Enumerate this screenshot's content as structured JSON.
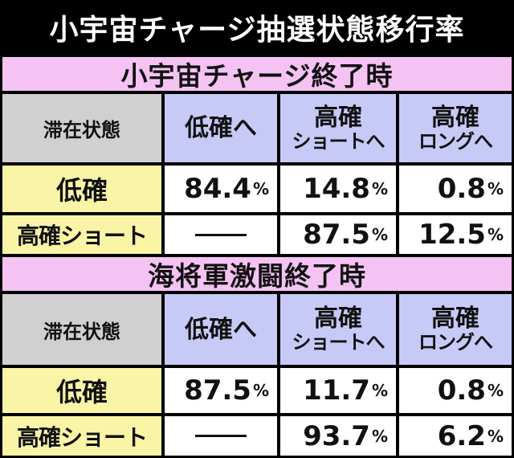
{
  "title": "小宇宙チャージ抽選状態移行率",
  "headers": {
    "state": "滞在状態",
    "col1": "低確へ",
    "col2_top": "高確",
    "col2_bottom": "ショートへ",
    "col3_top": "高確",
    "col3_bottom": "ロングへ"
  },
  "sections": [
    {
      "heading": "小宇宙チャージ終了時",
      "rows": [
        {
          "label": "低確",
          "v1": "84.4",
          "v2": "14.8",
          "v3": "0.8"
        },
        {
          "label": "高確ショート",
          "v1": "",
          "v2": "87.5",
          "v3": "12.5"
        }
      ]
    },
    {
      "heading": "海将軍激闘終了時",
      "rows": [
        {
          "label": "低確",
          "v1": "87.5",
          "v2": "11.7",
          "v3": "0.8"
        },
        {
          "label": "高確ショート",
          "v1": "",
          "v2": "93.7",
          "v3": "6.2"
        }
      ]
    }
  ],
  "percent_sign": "%",
  "colors": {
    "title_bg": "#000000",
    "section_bg": "#f4c3f4",
    "state_header_bg": "#d0d0d0",
    "col_header_bg": "#c7caf7",
    "row_label_bg": "#faf5a6",
    "value_bg": "#ffffff"
  }
}
